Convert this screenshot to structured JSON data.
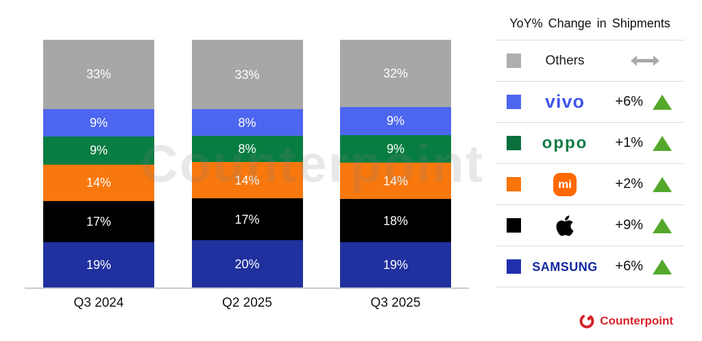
{
  "chart_data": {
    "type": "stacked-bar",
    "title": "",
    "categories": [
      "Q3 2024",
      "Q2 2025",
      "Q3 2025"
    ],
    "unit": "%",
    "value_suffix": "%",
    "stack_order_top_to_bottom": [
      "Others",
      "vivo",
      "OPPO",
      "Xiaomi",
      "Apple",
      "Samsung"
    ],
    "series": [
      {
        "name": "Others",
        "color": "#a7a7a7",
        "values": [
          33,
          33,
          32
        ]
      },
      {
        "name": "vivo",
        "color": "#4d66ef",
        "values": [
          9,
          8,
          9
        ]
      },
      {
        "name": "OPPO",
        "color": "#087d41",
        "values": [
          9,
          8,
          9
        ]
      },
      {
        "name": "Xiaomi",
        "color": "#f8780e",
        "values": [
          14,
          14,
          14
        ]
      },
      {
        "name": "Apple",
        "color": "#000000",
        "values": [
          17,
          17,
          18
        ]
      },
      {
        "name": "Samsung",
        "color": "#20309e",
        "values": [
          19,
          20,
          19
        ]
      }
    ],
    "legend_position": "right",
    "grid": false
  },
  "legend": {
    "title": "YoY% Change in Shipments",
    "trend_up_color": "#53a82c",
    "flat_arrow_color": "#a9a9a9",
    "rows": [
      {
        "brand": "Others",
        "swatch": "#aeaeae",
        "logo_type": "text",
        "logo_text": "Others",
        "yoy": "",
        "trend": "flat"
      },
      {
        "brand": "vivo",
        "swatch": "#4d66ef",
        "logo_type": "vivo",
        "logo_text": "vivo",
        "yoy": "+6%",
        "trend": "up"
      },
      {
        "brand": "OPPO",
        "swatch": "#0a6e3d",
        "logo_type": "oppo",
        "logo_text": "oppo",
        "yoy": "+1%",
        "trend": "up"
      },
      {
        "brand": "Xiaomi",
        "swatch": "#f97409",
        "logo_type": "mi",
        "logo_text": "mi",
        "yoy": "+2%",
        "trend": "up"
      },
      {
        "brand": "Apple",
        "swatch": "#000000",
        "logo_type": "apple",
        "logo_text": "",
        "yoy": "+9%",
        "trend": "up"
      },
      {
        "brand": "Samsung",
        "swatch": "#1f2fae",
        "logo_type": "samsung",
        "logo_text": "SAMSUNG",
        "yoy": "+6%",
        "trend": "up"
      }
    ]
  },
  "watermark": "Counterpoint",
  "footer": {
    "brand": "Counterpoint",
    "color": "#d6232a"
  }
}
